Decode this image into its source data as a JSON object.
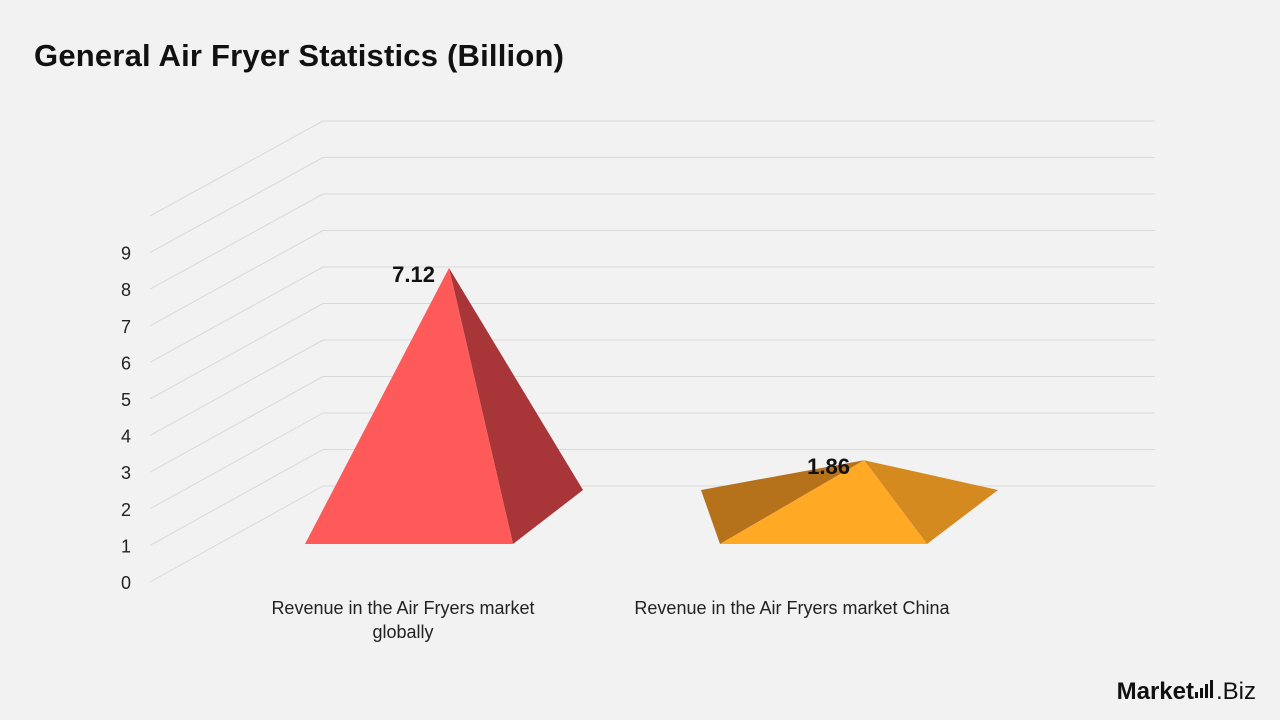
{
  "title": "General Air Fryer Statistics (Billion)",
  "logo": {
    "bold": "Market",
    "light": ".Biz"
  },
  "chart_data": {
    "type": "bar",
    "subtype": "3d-pyramid",
    "title": "General Air Fryer Statistics (Billion)",
    "categories": [
      [
        "Revenue in the Air Fryers market",
        "globally"
      ],
      [
        "Revenue in the Air Fryers market China"
      ]
    ],
    "values": [
      7.12,
      1.86
    ],
    "data_labels": [
      "7.12",
      "1.86"
    ],
    "colors": [
      {
        "front": "#ff5a5a",
        "side": "#a83538"
      },
      {
        "front": "#ffa925",
        "side": "#d48a1f",
        "back": "#b5721a"
      }
    ],
    "ylim": [
      0,
      9
    ],
    "yticks": [
      "0",
      "1",
      "2",
      "3",
      "4",
      "5",
      "6",
      "7",
      "8",
      "9"
    ],
    "grid": true,
    "legend": "none"
  }
}
